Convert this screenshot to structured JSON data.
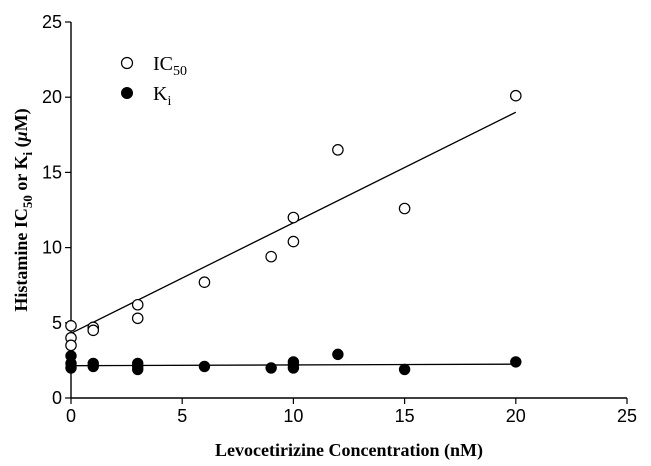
{
  "chart_data": {
    "type": "scatter",
    "title": "",
    "xlabel": "Levocetirizine Concentration (nM)",
    "ylabel": {
      "prefix": "Histamine IC",
      "sub1": "50",
      "mid": " or K",
      "sub2": "i",
      "post": " (",
      "mu": "μ",
      "M": "M",
      "close": ")"
    },
    "xlim": [
      0,
      25
    ],
    "ylim": [
      0,
      25
    ],
    "xticks": [
      0,
      5,
      10,
      15,
      20,
      25
    ],
    "yticks": [
      0,
      5,
      10,
      15,
      20,
      25
    ],
    "grid": false,
    "legend_position": "top-left",
    "series": [
      {
        "name": "IC50",
        "legend_main": "IC",
        "legend_sub": "50",
        "marker": "open-circle",
        "points": [
          [
            0,
            4.8
          ],
          [
            0,
            4.0
          ],
          [
            0,
            3.5
          ],
          [
            1,
            4.7
          ],
          [
            1,
            4.5
          ],
          [
            3,
            6.2
          ],
          [
            3,
            5.3
          ],
          [
            6,
            7.7
          ],
          [
            9,
            9.4
          ],
          [
            10,
            12.0
          ],
          [
            10,
            10.4
          ],
          [
            12,
            16.5
          ],
          [
            15,
            12.6
          ],
          [
            20,
            20.1
          ]
        ],
        "fit": [
          [
            0,
            4.3
          ],
          [
            20,
            19.0
          ]
        ]
      },
      {
        "name": "Ki",
        "legend_main": "K",
        "legend_sub": "i",
        "marker": "filled-circle",
        "points": [
          [
            0,
            2.8
          ],
          [
            0,
            2.3
          ],
          [
            0,
            2.0
          ],
          [
            1,
            2.3
          ],
          [
            1,
            2.1
          ],
          [
            3,
            2.3
          ],
          [
            3,
            2.1
          ],
          [
            3,
            1.9
          ],
          [
            6,
            2.1
          ],
          [
            9,
            2.0
          ],
          [
            10,
            2.4
          ],
          [
            10,
            2.2
          ],
          [
            10,
            2.0
          ],
          [
            12,
            2.9
          ],
          [
            15,
            1.9
          ],
          [
            20,
            2.4
          ]
        ],
        "fit": [
          [
            0,
            2.15
          ],
          [
            20,
            2.25
          ]
        ]
      }
    ]
  }
}
